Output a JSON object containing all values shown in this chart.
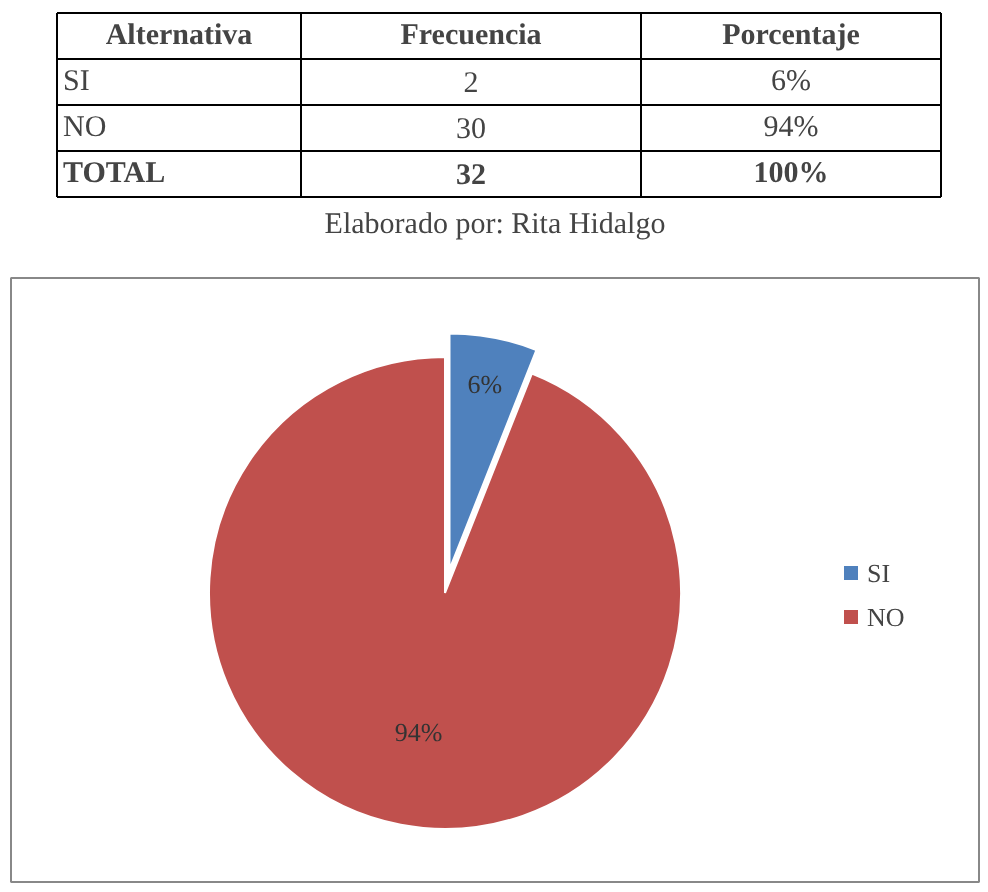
{
  "chart_data": [
    {
      "type": "other",
      "annotations": [
        "Alternativa",
        "Frecuencia",
        "Porcentaje",
        "SI",
        "2",
        "6%",
        "NO",
        "30",
        "94%",
        "TOTAL",
        "32",
        "100%"
      ],
      "subtitle": "Elaborado por: Rita Hidalgo"
    },
    {
      "type": "pie",
      "categories": [
        "SI",
        "NO"
      ],
      "values": [
        6,
        94
      ],
      "value_labels": [
        "6%",
        "94%"
      ],
      "colors": [
        "#4f81bd",
        "#c0504d"
      ],
      "legend": "right"
    }
  ]
}
